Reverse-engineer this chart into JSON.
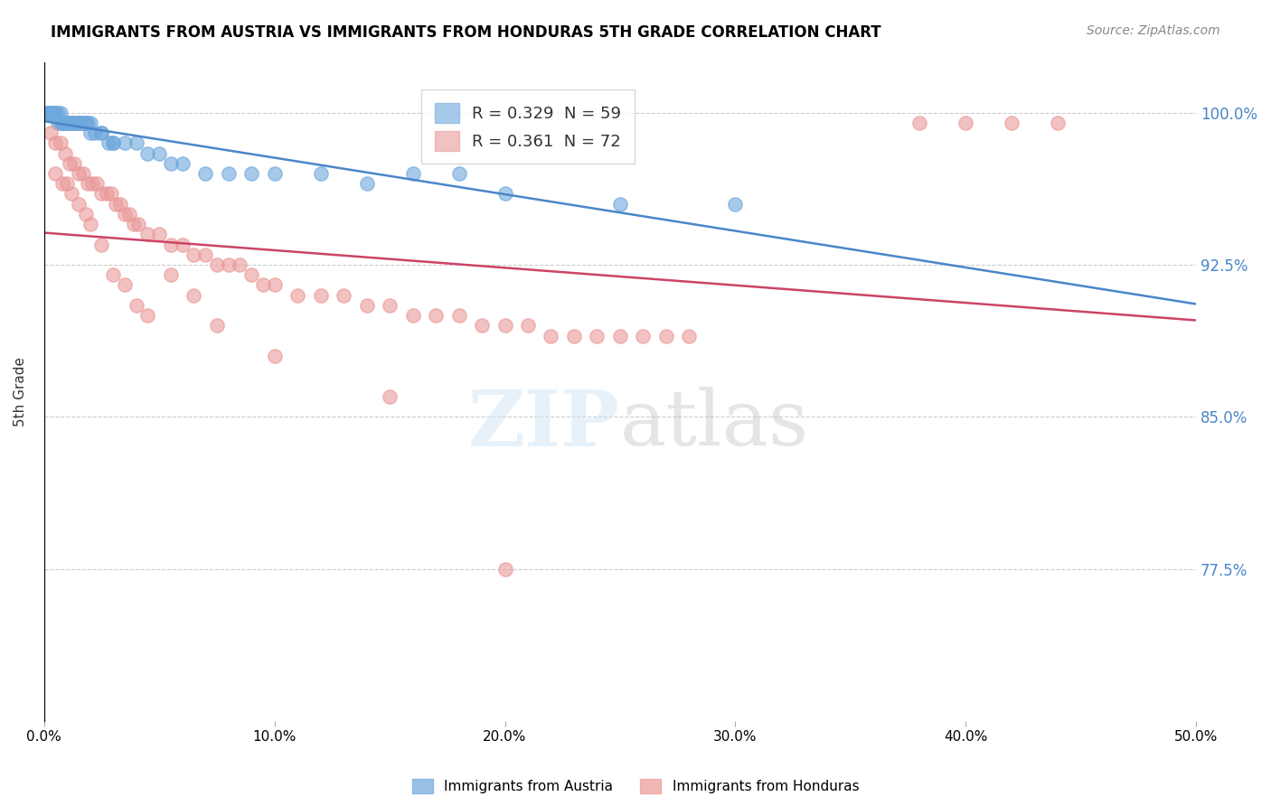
{
  "title": "IMMIGRANTS FROM AUSTRIA VS IMMIGRANTS FROM HONDURAS 5TH GRADE CORRELATION CHART",
  "source": "Source: ZipAtlas.com",
  "xlabel": "",
  "ylabel": "5th Grade",
  "xlim": [
    0.0,
    50.0
  ],
  "ylim": [
    70.0,
    102.5
  ],
  "yticks": [
    77.5,
    85.0,
    92.5,
    100.0
  ],
  "ytick_labels": [
    "77.5%",
    "85.0%",
    "92.5%",
    "100.0%"
  ],
  "xticks": [
    0.0,
    10.0,
    20.0,
    30.0,
    40.0,
    50.0
  ],
  "xtick_labels": [
    "0.0%",
    "10.0%",
    "20.0%",
    "30.0%",
    "40.0%",
    "50.0%"
  ],
  "austria_R": 0.329,
  "austria_N": 59,
  "honduras_R": 0.361,
  "honduras_N": 72,
  "austria_color": "#6fa8dc",
  "honduras_color": "#ea9999",
  "austria_line_color": "#4a86c8",
  "honduras_line_color": "#cc4466",
  "legend_R_color": "#4a86c8",
  "legend_N_color": "#cc0000",
  "legend_label_austria": "Immigrants from Austria",
  "legend_label_honduras": "Immigrants from Honduras",
  "watermark": "ZIPatlas",
  "austria_x": [
    0.2,
    0.3,
    0.4,
    0.5,
    0.6,
    0.7,
    0.8,
    0.9,
    1.0,
    1.1,
    1.2,
    1.3,
    1.5,
    1.6,
    1.8,
    2.0,
    2.2,
    2.5,
    2.8,
    3.0,
    3.5,
    4.0,
    4.5,
    5.0,
    5.5,
    6.0,
    7.0,
    8.0,
    9.0,
    10.0,
    12.0,
    14.0,
    16.0,
    18.0,
    20.0,
    25.0,
    30.0,
    0.1,
    0.2,
    0.3,
    0.4,
    0.5,
    0.6,
    0.7,
    0.8,
    0.9,
    1.0,
    1.1,
    1.2,
    1.3,
    1.4,
    1.5,
    1.6,
    1.7,
    1.8,
    1.9,
    2.0,
    2.5,
    3.0
  ],
  "austria_y": [
    100.0,
    100.0,
    100.0,
    100.0,
    99.5,
    99.5,
    99.5,
    99.5,
    99.5,
    99.5,
    99.5,
    99.5,
    99.5,
    99.5,
    99.5,
    99.0,
    99.0,
    99.0,
    98.5,
    98.5,
    98.5,
    98.5,
    98.0,
    98.0,
    97.5,
    97.5,
    97.0,
    97.0,
    97.0,
    97.0,
    97.0,
    96.5,
    97.0,
    97.0,
    96.0,
    95.5,
    95.5,
    100.0,
    100.0,
    100.0,
    100.0,
    100.0,
    100.0,
    100.0,
    99.5,
    99.5,
    99.5,
    99.5,
    99.5,
    99.5,
    99.5,
    99.5,
    99.5,
    99.5,
    99.5,
    99.5,
    99.5,
    99.0,
    98.5
  ],
  "honduras_x": [
    0.3,
    0.5,
    0.7,
    0.9,
    1.1,
    1.3,
    1.5,
    1.7,
    1.9,
    2.1,
    2.3,
    2.5,
    2.7,
    2.9,
    3.1,
    3.3,
    3.5,
    3.7,
    3.9,
    4.1,
    4.5,
    5.0,
    5.5,
    6.0,
    6.5,
    7.0,
    7.5,
    8.0,
    8.5,
    9.0,
    9.5,
    10.0,
    11.0,
    12.0,
    13.0,
    14.0,
    15.0,
    16.0,
    17.0,
    18.0,
    19.0,
    20.0,
    21.0,
    22.0,
    23.0,
    24.0,
    25.0,
    26.0,
    27.0,
    28.0,
    38.0,
    40.0,
    42.0,
    44.0,
    0.5,
    0.8,
    1.0,
    1.2,
    1.5,
    1.8,
    2.0,
    2.5,
    3.0,
    3.5,
    4.0,
    4.5,
    5.5,
    6.5,
    7.5,
    10.0,
    15.0,
    20.0
  ],
  "honduras_y": [
    99.0,
    98.5,
    98.5,
    98.0,
    97.5,
    97.5,
    97.0,
    97.0,
    96.5,
    96.5,
    96.5,
    96.0,
    96.0,
    96.0,
    95.5,
    95.5,
    95.0,
    95.0,
    94.5,
    94.5,
    94.0,
    94.0,
    93.5,
    93.5,
    93.0,
    93.0,
    92.5,
    92.5,
    92.5,
    92.0,
    91.5,
    91.5,
    91.0,
    91.0,
    91.0,
    90.5,
    90.5,
    90.0,
    90.0,
    90.0,
    89.5,
    89.5,
    89.5,
    89.0,
    89.0,
    89.0,
    89.0,
    89.0,
    89.0,
    89.0,
    99.5,
    99.5,
    99.5,
    99.5,
    97.0,
    96.5,
    96.5,
    96.0,
    95.5,
    95.0,
    94.5,
    93.5,
    92.0,
    91.5,
    90.5,
    90.0,
    92.0,
    91.0,
    89.5,
    88.0,
    86.0,
    77.5
  ]
}
